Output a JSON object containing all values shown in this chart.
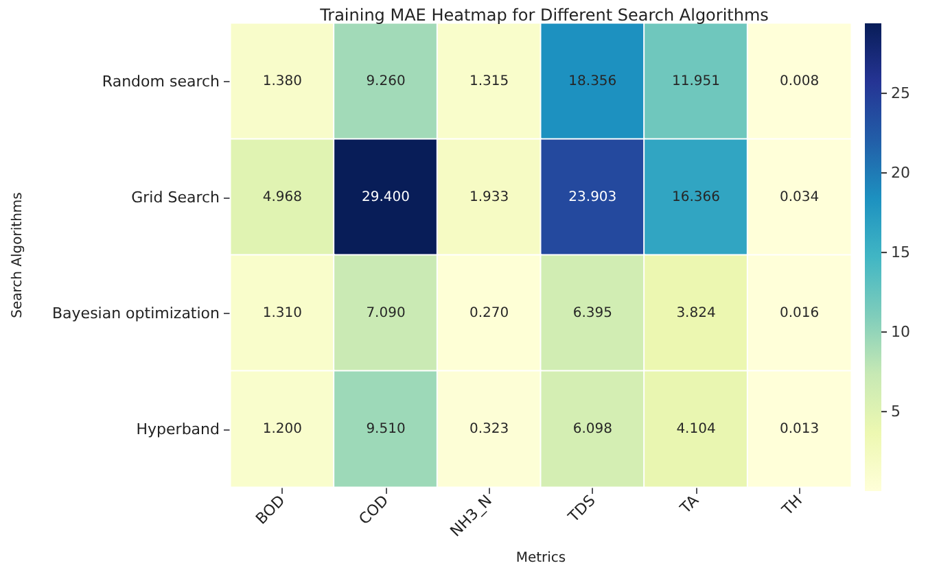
{
  "chart_data": {
    "type": "heatmap",
    "title": "Training MAE Heatmap for Different Search Algorithms",
    "xlabel": "Metrics",
    "ylabel": "Search Algorithms",
    "categories": [
      "BOD",
      "COD",
      "NH3_N",
      "TDS",
      "TA",
      "TH"
    ],
    "y_categories": [
      "Random search",
      "Grid Search",
      "Bayesian optimization",
      "Hyperband"
    ],
    "cells": [
      [
        1.38,
        9.26,
        1.315,
        18.356,
        11.951,
        0.008
      ],
      [
        4.968,
        29.4,
        1.933,
        23.903,
        16.366,
        0.034
      ],
      [
        1.31,
        7.09,
        0.27,
        6.395,
        3.824,
        0.016
      ],
      [
        1.2,
        9.51,
        0.323,
        6.098,
        4.104,
        0.013
      ]
    ],
    "cell_labels": [
      [
        "1.380",
        "9.260",
        "1.315",
        "18.356",
        "11.951",
        "0.008"
      ],
      [
        "4.968",
        "29.400",
        "1.933",
        "23.903",
        "16.366",
        "0.034"
      ],
      [
        "1.310",
        "7.090",
        "0.270",
        "6.395",
        "3.824",
        "0.016"
      ],
      [
        "1.200",
        "9.510",
        "0.323",
        "6.098",
        "4.104",
        "0.013"
      ]
    ],
    "clim": [
      0.008,
      29.4
    ],
    "cticks": [
      5,
      10,
      15,
      20,
      25
    ]
  }
}
